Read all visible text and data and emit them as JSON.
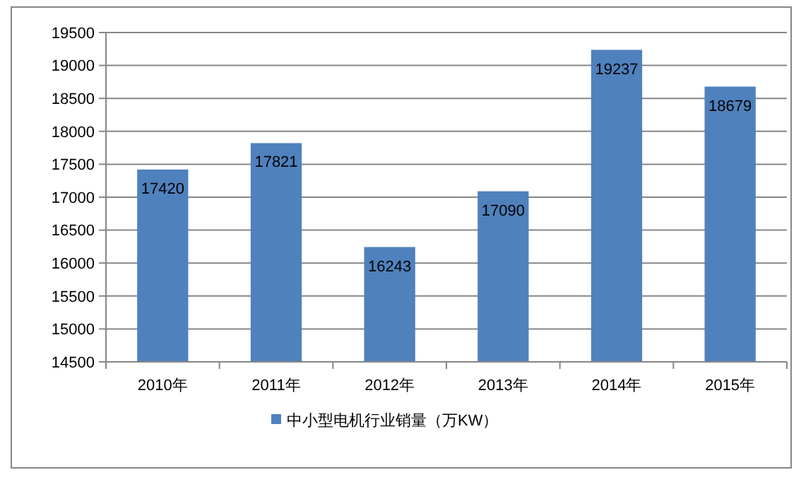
{
  "chart_data": {
    "type": "bar",
    "categories": [
      "2010年",
      "2011年",
      "2012年",
      "2013年",
      "2014年",
      "2015年"
    ],
    "series": [
      {
        "name": "中小型电机行业销量（万KW）",
        "color": "#4f81bd",
        "values": [
          17420,
          17821,
          16243,
          17090,
          19237,
          18679
        ]
      }
    ],
    "ylim": [
      14500,
      19500
    ],
    "yticks": [
      14500,
      15000,
      15500,
      16000,
      16500,
      17000,
      17500,
      18000,
      18500,
      19000,
      19500
    ],
    "grid": "y",
    "legend": "bottom",
    "data_labels": true
  }
}
